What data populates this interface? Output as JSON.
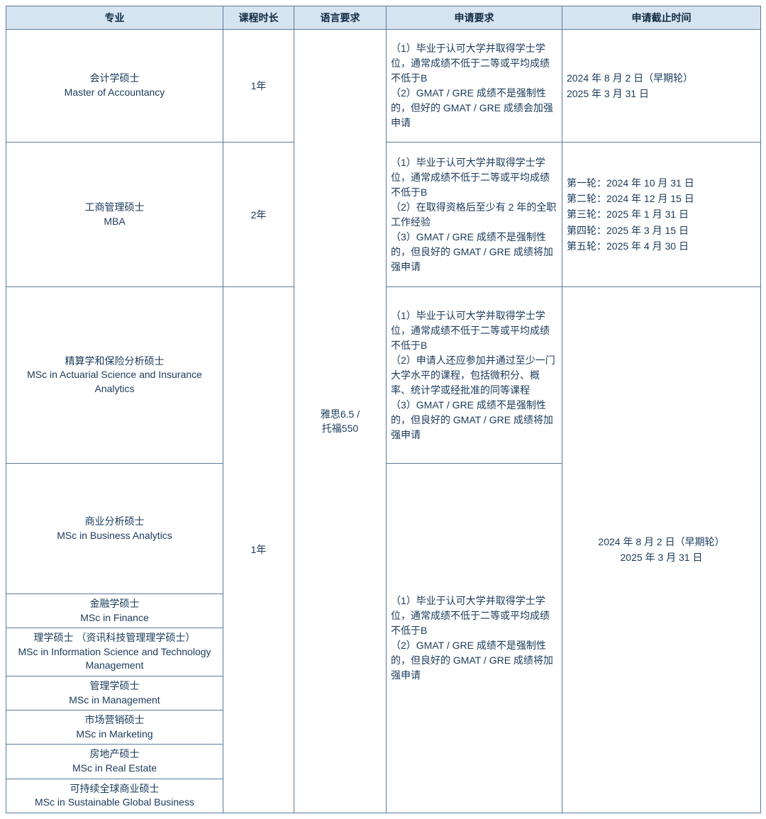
{
  "header": {
    "program": "专业",
    "duration": "课程时长",
    "language": "语言要求",
    "requirements": "申请要求",
    "deadline": "申请截止时间"
  },
  "language_req": "雅思6.5 /\n托福550",
  "rows": {
    "r1": {
      "program": "会计学硕士\nMaster of Accountancy",
      "duration": "1年",
      "req": "（1）毕业于认可大学并取得学士学位，通常成绩不低于二等或平均成绩不低于B\n（2）GMAT / GRE 成绩不是强制性的，但好的 GMAT / GRE 成绩会加强申请",
      "deadline": "2024 年 8 月 2 日（早期轮）\n2025 年 3 月 31 日"
    },
    "r2": {
      "program": "工商管理硕士\nMBA",
      "duration": "2年",
      "req": "（1）毕业于认可大学并取得学士学位，通常成绩不低于二等或平均成绩不低于B\n（2）在取得资格后至少有 2 年的全职工作经验\n（3）GMAT / GRE 成绩不是强制性的，但良好的 GMAT / GRE 成绩将加强申请",
      "deadline": "第一轮：2024 年 10 月 31 日\n第二轮：2024 年 12 月 15 日\n第三轮：2025 年 1 月 31 日\n第四轮：2025 年 3 月 15 日\n第五轮：2025 年 4 月 30 日"
    },
    "r3": {
      "program": "精算学和保险分析硕士\nMSc in Actuarial Science and Insurance Analytics",
      "req": "（1）毕业于认可大学并取得学士学位，通常成绩不低于二等或平均成绩不低于B\n（2）申请人还应参加并通过至少一门大学水平的课程，包括微积分、概率、统计学或经批准的同等课程\n（3）GMAT / GRE 成绩不是强制性的，但良好的 GMAT / GRE 成绩将加强申请"
    },
    "r4": {
      "program": "商业分析硕士\nMSc in Business Analytics",
      "duration": "1年",
      "req_shared": "（1）毕业于认可大学并取得学士学位，通常成绩不低于二等或平均成绩不低于B\n（2）GMAT / GRE 成绩不是强制性的，但良好的 GMAT / GRE 成绩将加强申请",
      "deadline_shared": "2024 年 8 月 2 日（早期轮）\n2025 年 3 月 31 日"
    },
    "r5": {
      "program": "金融学硕士\nMSc in Finance"
    },
    "r6": {
      "program": "理学硕士 （资讯科技管理理学硕士）\nMSc in Information Science and Technology Management"
    },
    "r7": {
      "program": "管理学硕士\nMSc in Management"
    },
    "r8": {
      "program": "市场营销硕士\nMSc in Marketing"
    },
    "r9": {
      "program": "房地产硕士\nMSc in Real Estate"
    },
    "r10": {
      "program": "可持续全球商业硕士\nMSc in Sustainable Global Business"
    }
  }
}
